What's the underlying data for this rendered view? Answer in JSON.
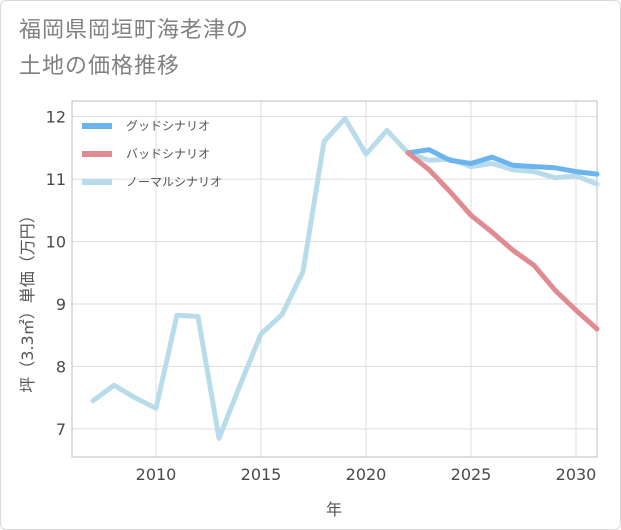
{
  "title_lines": [
    "福岡県岡垣町海老津の",
    "土地の価格推移"
  ],
  "chart_data": {
    "type": "line",
    "xlabel": "年",
    "ylabel": "坪（3.3㎡）単価（万円）",
    "xlim": [
      2006,
      2031
    ],
    "ylim": [
      6.55,
      12.25
    ],
    "xticks": [
      2010,
      2015,
      2020,
      2025,
      2030
    ],
    "yticks": [
      7,
      8,
      9,
      10,
      11,
      12
    ],
    "grid": true,
    "legend_position": "top-left",
    "series": [
      {
        "name": "グッドシナリオ",
        "color": "#6cb4ee",
        "x": [
          2022,
          2023,
          2024,
          2025,
          2026,
          2027,
          2028,
          2029,
          2030,
          2031
        ],
        "y": [
          11.42,
          11.47,
          11.3,
          11.25,
          11.35,
          11.22,
          11.2,
          11.18,
          11.12,
          11.08
        ]
      },
      {
        "name": "バッドシナリオ",
        "color": "#e08a92",
        "x": [
          2022,
          2023,
          2024,
          2025,
          2026,
          2027,
          2028,
          2029,
          2030,
          2031
        ],
        "y": [
          11.42,
          11.15,
          10.8,
          10.42,
          10.15,
          9.86,
          9.62,
          9.22,
          8.9,
          8.6
        ]
      },
      {
        "name": "ノーマルシナリオ",
        "color": "#b9dcea",
        "x": [
          2007,
          2008,
          2009,
          2010,
          2011,
          2012,
          2013,
          2014,
          2015,
          2016,
          2017,
          2018,
          2019,
          2020,
          2021,
          2022,
          2023,
          2024,
          2025,
          2026,
          2027,
          2028,
          2029,
          2030,
          2031
        ],
        "y": [
          7.45,
          7.7,
          7.5,
          7.33,
          8.82,
          8.8,
          6.85,
          7.7,
          8.52,
          8.83,
          9.52,
          11.6,
          11.97,
          11.4,
          11.78,
          11.42,
          11.3,
          11.32,
          11.2,
          11.25,
          11.15,
          11.12,
          11.02,
          11.05,
          10.92
        ]
      }
    ]
  }
}
